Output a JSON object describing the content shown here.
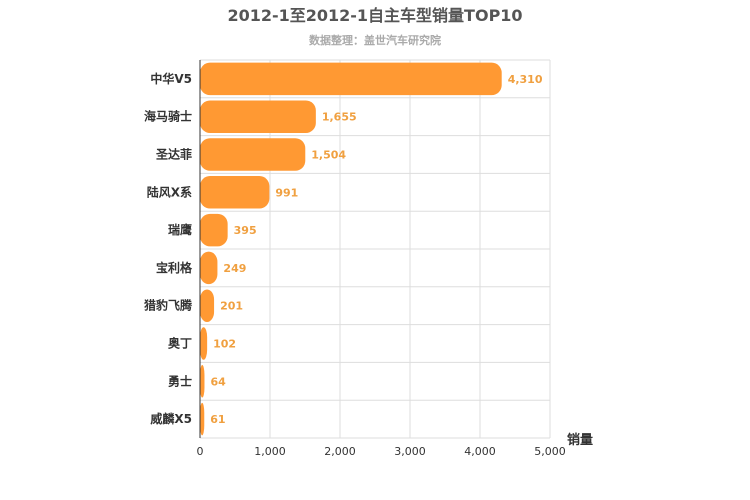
{
  "chart_data": {
    "type": "bar",
    "orientation": "horizontal",
    "title": "2012-1至2012-1自主车型销量TOP10",
    "subtitle": "数据整理：盖世汽车研究院",
    "xlabel": "销量",
    "ylabel": "",
    "categories": [
      "中华V5",
      "海马骑士",
      "圣达菲",
      "陆风X系",
      "瑞鹰",
      "宝利格",
      "猎豹飞腾",
      "奥丁",
      "勇士",
      "威麟X5"
    ],
    "values": [
      4310,
      1655,
      1504,
      991,
      395,
      249,
      201,
      102,
      64,
      61
    ],
    "value_labels": [
      "4,310",
      "1,655",
      "1,504",
      "991",
      "395",
      "249",
      "201",
      "102",
      "64",
      "61"
    ],
    "xlim": [
      0,
      5000
    ],
    "ticks": [
      0,
      1000,
      2000,
      3000,
      4000,
      5000
    ],
    "tick_labels": [
      "0",
      "1,000",
      "2,000",
      "3,000",
      "4,000",
      "5,000"
    ],
    "grid": true,
    "legend": "none",
    "colors": {
      "bar": "#ff9933",
      "data_label": "#f0a040"
    }
  }
}
